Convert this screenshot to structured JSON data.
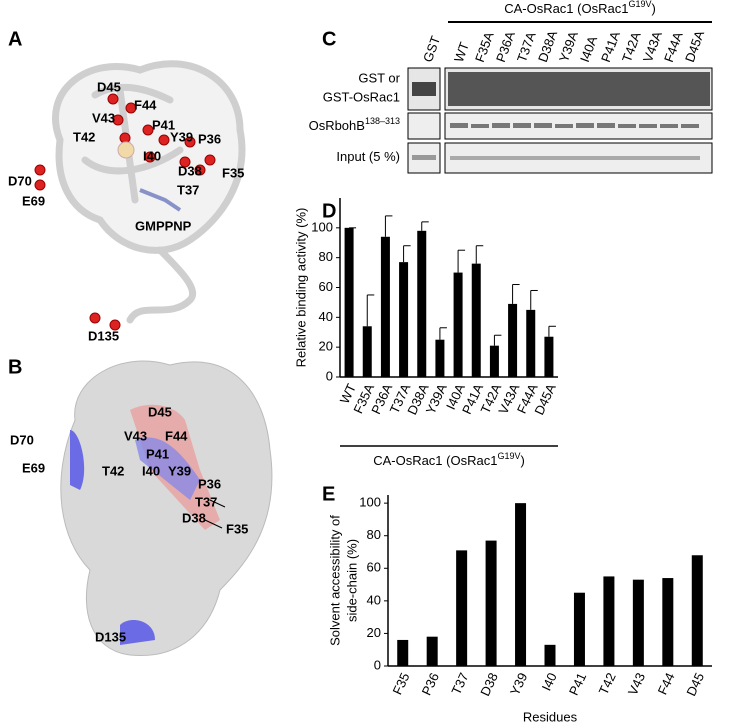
{
  "panels": {
    "A": {
      "letter": "A",
      "labels": [
        "D45",
        "F44",
        "V43",
        "P41",
        "T42",
        "Y39",
        "P36",
        "I40",
        "D70",
        "E69",
        "F35",
        "D38",
        "T37",
        "D135"
      ],
      "ligand": "GMPPNP"
    },
    "B": {
      "letter": "B",
      "labels": [
        "D45",
        "V43",
        "F44",
        "P41",
        "T42",
        "I40",
        "Y39",
        "P36",
        "D70",
        "E69",
        "T37",
        "D38",
        "F35",
        "D135"
      ]
    },
    "C": {
      "letter": "C",
      "header": {
        "text": "CA-OsRac1 (OsRac1",
        "sup": "G19V",
        "tail": ")"
      },
      "lanes": [
        "GST",
        "WT",
        "F35A",
        "P36A",
        "T37A",
        "D38A",
        "Y39A",
        "I40A",
        "P41A",
        "T42A",
        "V43A",
        "F44A",
        "D45A"
      ],
      "rows": [
        {
          "lines": [
            "GST or",
            "GST-OsRac1"
          ]
        },
        {
          "text": "OsRbohB",
          "sup": "138–313"
        },
        {
          "text": "Input (5 %)"
        }
      ]
    },
    "D": {
      "letter": "D"
    },
    "E": {
      "letter": "E"
    }
  },
  "chart_data": [
    {
      "type": "bar",
      "y_label": "Relative binding activity (%)",
      "categories": [
        "WT",
        "F35A",
        "P36A",
        "T37A",
        "D38A",
        "Y39A",
        "I40A",
        "P41A",
        "T42A",
        "V43A",
        "F44A",
        "D45A"
      ],
      "values": [
        100,
        34,
        94,
        77,
        98,
        25,
        70,
        76,
        21,
        49,
        45,
        27
      ],
      "errors": [
        0,
        21,
        14,
        11,
        6,
        8,
        15,
        12,
        7,
        13,
        13,
        7
      ],
      "color": "#000000",
      "ylim": [
        0,
        120
      ],
      "yticks": [
        0,
        20,
        40,
        60,
        80,
        100
      ],
      "group_label": {
        "text": "CA-OsRac1 (OsRac1",
        "sup": "G19V",
        "tail": ")"
      }
    },
    {
      "type": "bar",
      "y_label": [
        "Solvent  accessibility of",
        "side-chain  (%)"
      ],
      "x_label": "Residues",
      "categories": [
        "F35",
        "P36",
        "T37",
        "D38",
        "Y39",
        "I40",
        "P41",
        "T42",
        "V43",
        "F44",
        "D45"
      ],
      "values": [
        16,
        18,
        71,
        77,
        100,
        13,
        45,
        55,
        53,
        54,
        68
      ],
      "color": "#000000",
      "ylim": [
        0,
        105
      ],
      "yticks": [
        0,
        20,
        40,
        60,
        80,
        100
      ]
    }
  ]
}
